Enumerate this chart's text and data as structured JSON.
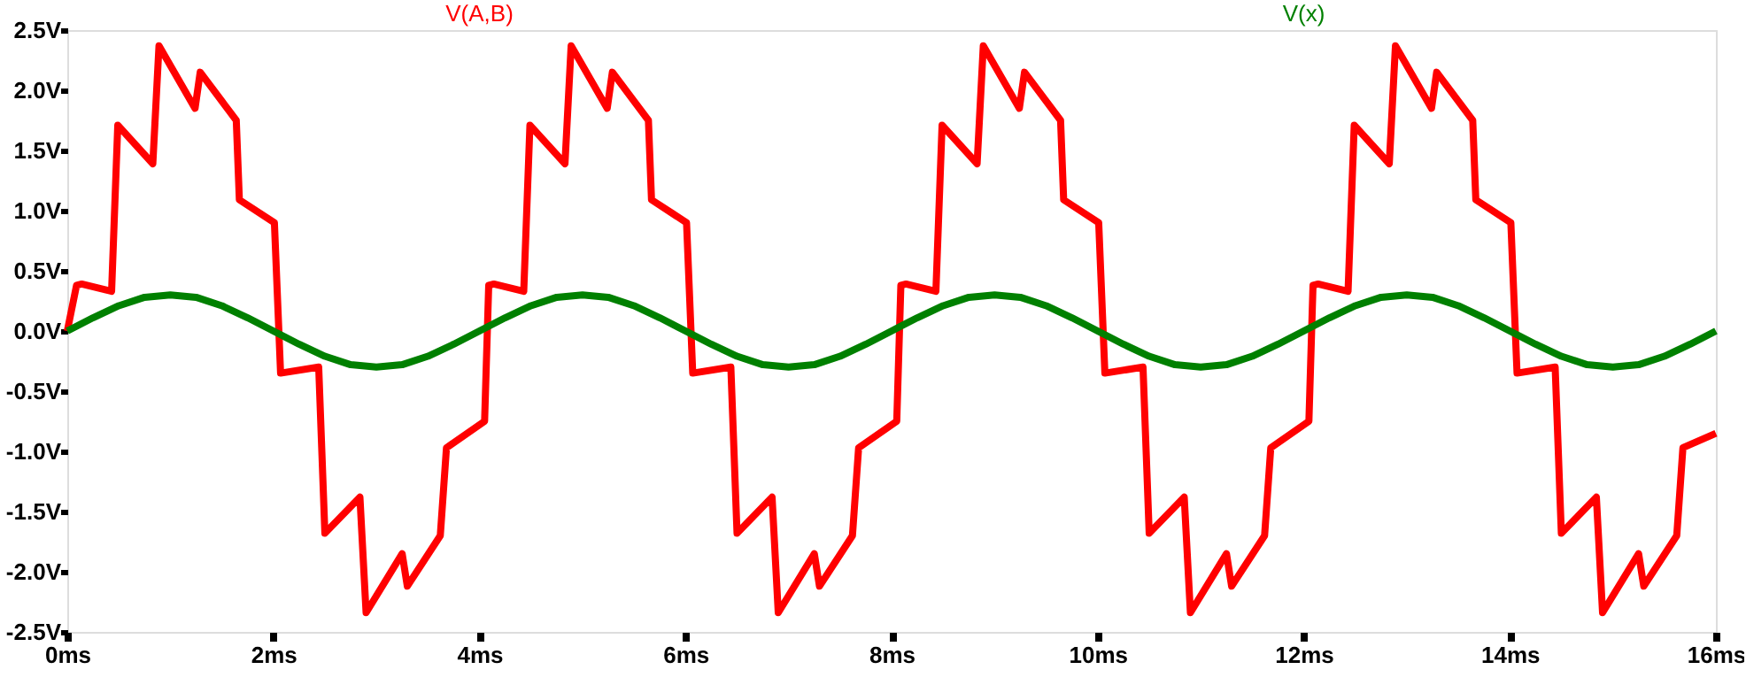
{
  "chart_data": {
    "type": "line",
    "legend": "top",
    "grid": false,
    "marker": "none",
    "line_style": "solid",
    "xlim": [
      0,
      16
    ],
    "xticks": [
      {
        "value": 0,
        "label": "0ms"
      },
      {
        "value": 2,
        "label": "2ms"
      },
      {
        "value": 4,
        "label": "4ms"
      },
      {
        "value": 6,
        "label": "6ms"
      },
      {
        "value": 8,
        "label": "8ms"
      },
      {
        "value": 10,
        "label": "10ms"
      },
      {
        "value": 12,
        "label": "12ms"
      },
      {
        "value": 14,
        "label": "14ms"
      },
      {
        "value": 16,
        "label": "16ms"
      }
    ],
    "ylim": [
      -2.5,
      2.5
    ],
    "yticks": [
      {
        "value": -2.5,
        "label": "-2.5V"
      },
      {
        "value": -2.0,
        "label": "-2.0V"
      },
      {
        "value": -1.5,
        "label": "-1.5V"
      },
      {
        "value": -1.0,
        "label": "-1.0V"
      },
      {
        "value": -0.5,
        "label": "-0.5V"
      },
      {
        "value": 0,
        "label": "0.0V"
      },
      {
        "value": 0.5,
        "label": "0.5V"
      },
      {
        "value": 1.0,
        "label": "1.0V"
      },
      {
        "value": 1.5,
        "label": "1.5V"
      },
      {
        "value": 2.0,
        "label": "2.0V"
      },
      {
        "value": 2.5,
        "label": "2.5V"
      }
    ],
    "series": [
      {
        "name": "V(A,B)",
        "color": "#ff0000",
        "x": [
          0,
          0.09,
          0.14,
          0.43,
          0.49,
          0.83,
          0.89,
          1.24,
          1.29,
          1.64,
          1.67,
          2.01,
          2.07,
          2.44,
          2.5,
          2.84,
          2.9,
          3.25,
          3.3,
          3.62,
          3.68,
          4.05,
          4.09,
          4.14,
          4.43,
          4.49,
          4.83,
          4.89,
          5.24,
          5.29,
          5.64,
          5.67,
          6.01,
          6.07,
          6.44,
          6.5,
          6.84,
          6.9,
          7.25,
          7.3,
          7.62,
          7.68,
          8.05,
          8.09,
          8.14,
          8.43,
          8.49,
          8.83,
          8.89,
          9.24,
          9.29,
          9.64,
          9.67,
          10.01,
          10.07,
          10.44,
          10.5,
          10.84,
          10.9,
          11.25,
          11.3,
          11.62,
          11.68,
          12.05,
          12.09,
          12.14,
          12.43,
          12.49,
          12.83,
          12.89,
          13.24,
          13.29,
          13.64,
          13.67,
          14.01,
          14.07,
          14.44,
          14.5,
          14.84,
          14.9,
          15.25,
          15.3,
          15.62,
          15.68,
          16
        ],
        "values": [
          0,
          0.38,
          0.39,
          0.33,
          1.71,
          1.39,
          2.37,
          1.85,
          2.15,
          1.75,
          1.09,
          0.9,
          -0.35,
          -0.3,
          -1.68,
          -1.38,
          -2.34,
          -1.85,
          -2.12,
          -1.7,
          -0.97,
          -0.75,
          0.38,
          0.39,
          0.33,
          1.71,
          1.39,
          2.37,
          1.85,
          2.15,
          1.75,
          1.09,
          0.9,
          -0.35,
          -0.3,
          -1.68,
          -1.38,
          -2.34,
          -1.85,
          -2.12,
          -1.7,
          -0.97,
          -0.75,
          0.38,
          0.39,
          0.33,
          1.71,
          1.39,
          2.37,
          1.85,
          2.15,
          1.75,
          1.09,
          0.9,
          -0.35,
          -0.3,
          -1.68,
          -1.38,
          -2.34,
          -1.85,
          -2.12,
          -1.7,
          -0.97,
          -0.75,
          0.38,
          0.39,
          0.33,
          1.71,
          1.39,
          2.37,
          1.85,
          2.15,
          1.75,
          1.09,
          0.9,
          -0.35,
          -0.3,
          -1.68,
          -1.38,
          -2.34,
          -1.85,
          -2.12,
          -1.7,
          -0.97,
          -0.85
        ]
      },
      {
        "name": "V(x)",
        "color": "#008000",
        "x": [
          0,
          0.25,
          0.5,
          0.75,
          1,
          1.25,
          1.5,
          1.75,
          2,
          2.25,
          2.5,
          2.75,
          3,
          3.25,
          3.5,
          3.75,
          4,
          4.25,
          4.5,
          4.75,
          5,
          5.25,
          5.5,
          5.75,
          6,
          6.25,
          6.5,
          6.75,
          7,
          7.25,
          7.5,
          7.75,
          8,
          8.25,
          8.5,
          8.75,
          9,
          9.25,
          9.5,
          9.75,
          10,
          10.25,
          10.5,
          10.75,
          11,
          11.25,
          11.5,
          11.75,
          12,
          12.25,
          12.5,
          12.75,
          13,
          13.25,
          13.5,
          13.75,
          14,
          14.25,
          14.5,
          14.75,
          15,
          15.25,
          15.5,
          15.75,
          16
        ],
        "values": [
          0,
          0.11,
          0.21,
          0.28,
          0.3,
          0.28,
          0.21,
          0.11,
          0,
          -0.11,
          -0.21,
          -0.28,
          -0.3,
          -0.28,
          -0.21,
          -0.11,
          0,
          0.11,
          0.21,
          0.28,
          0.3,
          0.28,
          0.21,
          0.11,
          0,
          -0.11,
          -0.21,
          -0.28,
          -0.3,
          -0.28,
          -0.21,
          -0.11,
          0,
          0.11,
          0.21,
          0.28,
          0.3,
          0.28,
          0.21,
          0.11,
          0,
          -0.11,
          -0.21,
          -0.28,
          -0.3,
          -0.28,
          -0.21,
          -0.11,
          0,
          0.11,
          0.21,
          0.28,
          0.3,
          0.28,
          0.21,
          0.11,
          0,
          -0.11,
          -0.21,
          -0.28,
          -0.3,
          -0.28,
          -0.21,
          -0.11,
          0
        ]
      }
    ]
  }
}
